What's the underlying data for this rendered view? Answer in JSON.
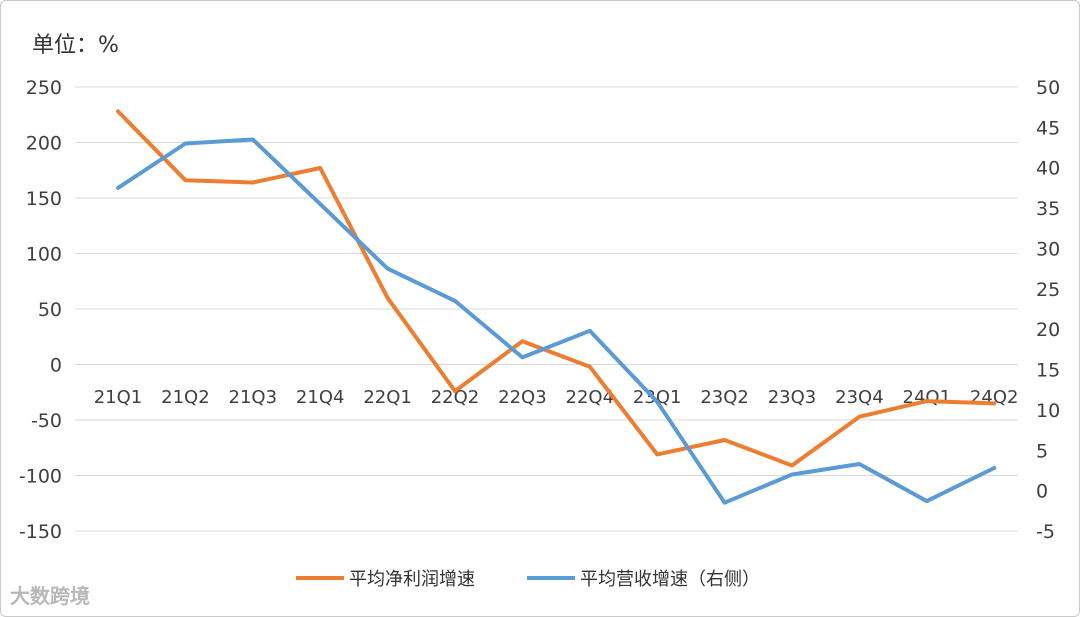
{
  "unit_label": "单位：%",
  "watermark": "大数跨境",
  "chart_data": {
    "type": "line",
    "categories": [
      "21Q1",
      "21Q2",
      "21Q3",
      "21Q4",
      "22Q1",
      "22Q2",
      "22Q3",
      "22Q4",
      "23Q1",
      "23Q2",
      "23Q3",
      "23Q4",
      "24Q1",
      "24Q2"
    ],
    "series": [
      {
        "name": "平均净利润增速",
        "axis": "left",
        "color": "#ED7D31",
        "values": [
          228,
          166,
          164,
          177,
          60,
          -24,
          21,
          -2,
          -81,
          -68,
          -91,
          -47,
          -33,
          -35
        ]
      },
      {
        "name": "平均营收增速（右侧）",
        "axis": "right",
        "color": "#5B9BD5",
        "values": [
          37.5,
          43,
          43.5,
          35.5,
          27.5,
          23.5,
          16.5,
          19.8,
          11,
          -1.5,
          2,
          3.3,
          -1.3,
          2.8
        ]
      }
    ],
    "y_left": {
      "min": -150,
      "max": 250,
      "ticks": [
        250,
        200,
        150,
        100,
        50,
        0,
        -50,
        -100,
        -150
      ]
    },
    "y_right": {
      "min": -5,
      "max": 50,
      "ticks": [
        50,
        45,
        40,
        35,
        30,
        25,
        20,
        15,
        10,
        5,
        0,
        -5
      ]
    },
    "grid": true,
    "legend_position": "bottom"
  }
}
